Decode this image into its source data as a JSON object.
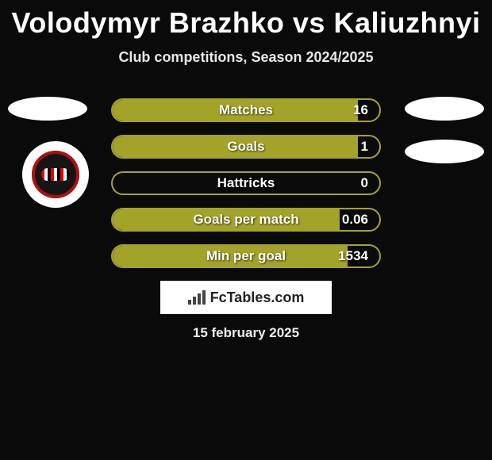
{
  "title": "Volodymyr Brazhko vs Kaliuzhnyi",
  "subtitle": "Club competitions, Season 2024/2025",
  "date": "15 february 2025",
  "banner_text": "FcTables.com",
  "colors": {
    "bar_border": "#a3a32a",
    "bar_fill": "#a3a32a",
    "background": "#0a0a0a"
  },
  "stats": [
    {
      "label": "Matches",
      "value": "16",
      "fill_pct": 92
    },
    {
      "label": "Goals",
      "value": "1",
      "fill_pct": 92
    },
    {
      "label": "Hattricks",
      "value": "0",
      "fill_pct": 0
    },
    {
      "label": "Goals per match",
      "value": "0.06",
      "fill_pct": 85
    },
    {
      "label": "Min per goal",
      "value": "1534",
      "fill_pct": 88
    }
  ]
}
